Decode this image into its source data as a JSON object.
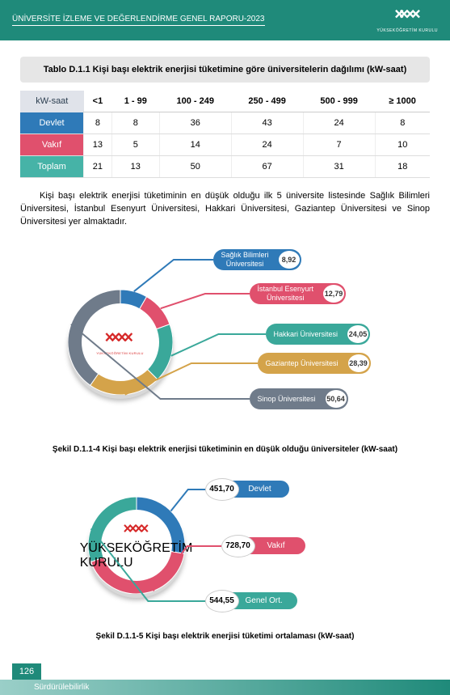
{
  "header": {
    "title": "ÜNİVERSİTE İZLEME VE DEĞERLENDİRME GENEL RAPORU-2023",
    "org_sub": "YÜKSEKÖĞRETİM KURULU"
  },
  "table": {
    "title": "Tablo D.1.1 Kişi başı elektrik enerjisi tüketimine göre üniversitelerin dağılımı (kW-saat)",
    "corner": "kW-saat",
    "columns": [
      "<1",
      "1 - 99",
      "100 - 249",
      "250 - 499",
      "500 - 999",
      "≥ 1000"
    ],
    "rows": [
      {
        "label": "Devlet",
        "values": [
          8,
          8,
          36,
          43,
          24,
          8
        ],
        "color": "#2f7ab8"
      },
      {
        "label": "Vakıf",
        "values": [
          13,
          5,
          14,
          24,
          7,
          10
        ],
        "color": "#e0506d"
      },
      {
        "label": "Toplam",
        "values": [
          21,
          13,
          50,
          67,
          31,
          18
        ],
        "color": "#46b3a7"
      }
    ]
  },
  "paragraph": "Kişi başı elektrik enerjisi tüketiminin en düşük olduğu ilk 5 üniversite listesinde Sağlık Bilimleri Üniversitesi, İstanbul Esenyurt Üniversitesi, Hakkari Üniversitesi, Gaziantep Üniversitesi ve Sinop Üniversitesi yer almaktadır.",
  "chart1": {
    "caption": "Şekil D.1.1-4 Kişi başı elektrik enerjisi tüketiminin en düşük olduğu üniversiteler (kW-saat)",
    "slices": [
      {
        "label": "Sağlık Bilimleri\nÜniversitesi",
        "value": "8,92",
        "color": "#2f7ab8"
      },
      {
        "label": "İstanbul Esenyurt\nÜniversitesi",
        "value": "12,79",
        "color": "#e0506d"
      },
      {
        "label": "Hakkari Üniversitesi",
        "value": "24,05",
        "color": "#3aa89a"
      },
      {
        "label": "Gaziantep Üniversitesi",
        "value": "28,39",
        "color": "#d4a34a"
      },
      {
        "label": "Sinop Üniversitesi",
        "value": "50,64",
        "color": "#6f7b8a"
      }
    ],
    "pie_angles": [
      {
        "start": -90,
        "end": -60,
        "color": "#2f7ab8"
      },
      {
        "start": -60,
        "end": -20,
        "color": "#e0506d"
      },
      {
        "start": -20,
        "end": 45,
        "color": "#3aa89a"
      },
      {
        "start": 45,
        "end": 125,
        "color": "#d4a34a"
      },
      {
        "start": 125,
        "end": 270,
        "color": "#6f7b8a"
      }
    ]
  },
  "chart2": {
    "caption": "Şekil D.1.1-5 Kişi başı elektrik enerjisi tüketimi ortalaması (kW-saat)",
    "items": [
      {
        "label": "Devlet",
        "value": "451,70",
        "color": "#2f7ab8"
      },
      {
        "label": "Vakıf",
        "value": "728,70",
        "color": "#e0506d"
      },
      {
        "label": "Genel Ort.",
        "value": "544,55",
        "color": "#3aa89a"
      }
    ],
    "pie_angles": [
      {
        "start": -90,
        "end": 10,
        "color": "#2f7ab8"
      },
      {
        "start": 10,
        "end": 160,
        "color": "#e0506d"
      },
      {
        "start": 160,
        "end": 270,
        "color": "#3aa89a"
      }
    ]
  },
  "footer": {
    "page": "126",
    "section": "Sürdürülebilirlik"
  },
  "logo_color_white": "#ffffff",
  "logo_color_red": "#d62828"
}
